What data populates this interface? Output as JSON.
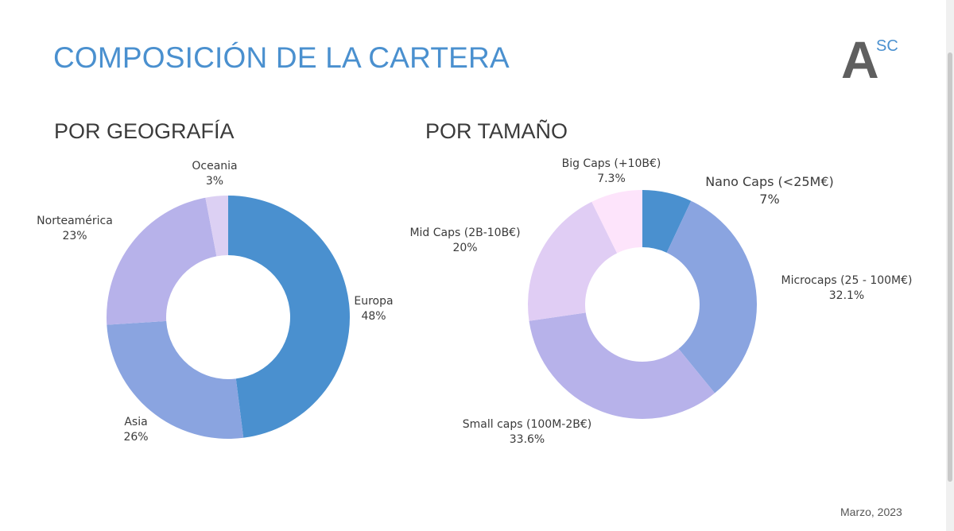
{
  "page": {
    "title": "COMPOSICIÓN DE LA CARTERA",
    "date": "Marzo, 2023",
    "logo": {
      "big": "A",
      "small": "SC"
    }
  },
  "chart_data": [
    {
      "type": "pie",
      "style": "donut",
      "title": "POR GEOGRAFÍA",
      "slices": [
        {
          "label": "Europa",
          "value": 48,
          "display": "48%",
          "color": "#4a90cf"
        },
        {
          "label": "Asia",
          "value": 26,
          "display": "26%",
          "color": "#8aa4e0"
        },
        {
          "label": "Norteamérica",
          "value": 23,
          "display": "23%",
          "color": "#b7b2ea"
        },
        {
          "label": "Oceania",
          "value": 3,
          "display": "3%",
          "color": "#dcd0f3"
        }
      ]
    },
    {
      "type": "pie",
      "style": "donut",
      "title": "POR TAMAÑO",
      "slices": [
        {
          "label": "Nano Caps (<25M€)",
          "value": 7,
          "display": "7%",
          "color": "#4a90cf"
        },
        {
          "label": "Microcaps (25 - 100M€)",
          "value": 32.1,
          "display": "32.1%",
          "color": "#8aa4e0"
        },
        {
          "label": "Small caps (100M-2B€)",
          "value": 33.6,
          "display": "33.6%",
          "color": "#b7b2ea"
        },
        {
          "label": "Mid Caps (2B-10B€)",
          "value": 20,
          "display": "20%",
          "color": "#e0cdf4"
        },
        {
          "label": "Big Caps (+10B€)",
          "value": 7.3,
          "display": "7.3%",
          "color": "#fde4fb"
        }
      ]
    }
  ]
}
